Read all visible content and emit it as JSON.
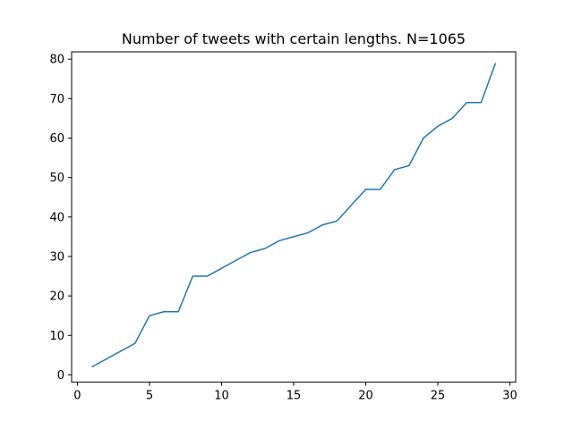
{
  "chart_data": {
    "type": "line",
    "title": "Number of tweets with certain lengths. N=1065",
    "xlabel": "",
    "ylabel": "",
    "xlim": [
      -0.4,
      30.4
    ],
    "ylim": [
      -1.85,
      81.85
    ],
    "x_ticks": [
      0,
      5,
      10,
      15,
      20,
      25,
      30
    ],
    "y_ticks": [
      0,
      10,
      20,
      30,
      40,
      50,
      60,
      70,
      80
    ],
    "grid": false,
    "series": [
      {
        "color": "#1f77b4",
        "x": [
          1,
          2,
          3,
          4,
          5,
          6,
          7,
          8,
          9,
          10,
          11,
          12,
          13,
          14,
          15,
          16,
          17,
          18,
          19,
          20,
          21,
          22,
          23,
          24,
          25,
          26,
          27,
          28,
          29
        ],
        "values": [
          2,
          4,
          6,
          8,
          15,
          16,
          16,
          25,
          25,
          27,
          29,
          31,
          32,
          34,
          35,
          36,
          38,
          39,
          43,
          47,
          47,
          52,
          53,
          60,
          63,
          65,
          69,
          69,
          79
        ]
      }
    ]
  }
}
